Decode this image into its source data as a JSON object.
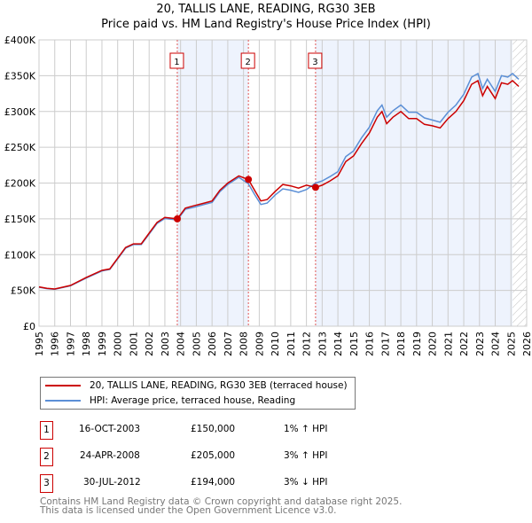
{
  "title_line1": "20, TALLIS LANE, READING, RG30 3EB",
  "title_line2": "Price paid vs. HM Land Registry's House Price Index (HPI)",
  "chart_data": {
    "type": "line",
    "ylim": [
      0,
      400000
    ],
    "xlim": [
      1995,
      2026
    ],
    "yticks": [
      0,
      50000,
      100000,
      150000,
      200000,
      250000,
      300000,
      350000,
      400000
    ],
    "ytick_labels": [
      "£0",
      "£50K",
      "£100K",
      "£150K",
      "£200K",
      "£250K",
      "£300K",
      "£350K",
      "£400K"
    ],
    "xticks": [
      1995,
      1996,
      1997,
      1998,
      1999,
      2000,
      2001,
      2002,
      2003,
      2004,
      2005,
      2006,
      2007,
      2008,
      2009,
      2010,
      2011,
      2012,
      2013,
      2014,
      2015,
      2016,
      2017,
      2018,
      2019,
      2020,
      2021,
      2022,
      2023,
      2024,
      2025,
      2026
    ],
    "grid": true,
    "shaded_ranges": [
      [
        2003.79,
        2008.31
      ],
      [
        2012.58,
        2025.1
      ]
    ],
    "hatched_from": 2025.1,
    "series": [
      {
        "name": "20, TALLIS LANE, READING, RG30 3EB (terraced house)",
        "color": "#cc0000",
        "x": [
          1995,
          1995.5,
          1996,
          1997,
          1998,
          1999,
          1999.5,
          2000,
          2000.5,
          2001,
          2001.5,
          2002,
          2002.5,
          2003,
          2003.79,
          2004.3,
          2004.8,
          2005.5,
          2006,
          2006.5,
          2007,
          2007.7,
          2008.31,
          2008.7,
          2009.1,
          2009.5,
          2010,
          2010.5,
          2011,
          2011.5,
          2012,
          2012.58,
          2013,
          2013.5,
          2014,
          2014.5,
          2015,
          2015.5,
          2016,
          2016.5,
          2016.8,
          2017.1,
          2017.5,
          2018,
          2018.5,
          2019,
          2019.5,
          2020,
          2020.5,
          2021,
          2021.5,
          2022,
          2022.5,
          2022.9,
          2023.2,
          2023.5,
          2024,
          2024.4,
          2024.8,
          2025.1,
          2025.5
        ],
        "y": [
          55000,
          53000,
          52000,
          57000,
          68000,
          78000,
          80000,
          95000,
          110000,
          115000,
          115000,
          130000,
          145000,
          152000,
          150000,
          165000,
          168000,
          172000,
          175000,
          190000,
          200000,
          210000,
          205000,
          190000,
          175000,
          177000,
          188000,
          198000,
          196000,
          193000,
          197000,
          194000,
          197000,
          203000,
          210000,
          230000,
          238000,
          255000,
          270000,
          292000,
          300000,
          283000,
          292000,
          300000,
          290000,
          290000,
          282000,
          280000,
          277000,
          290000,
          300000,
          315000,
          338000,
          343000,
          322000,
          335000,
          318000,
          340000,
          338000,
          343000,
          335000
        ]
      },
      {
        "name": "HPI: Average price, terraced house, Reading",
        "color": "#5b8fd6",
        "x": [
          1995,
          1995.5,
          1996,
          1997,
          1998,
          1999,
          1999.5,
          2000,
          2000.5,
          2001,
          2001.5,
          2002,
          2002.5,
          2003,
          2003.79,
          2004.3,
          2004.8,
          2005.5,
          2006,
          2006.5,
          2007,
          2007.7,
          2008.31,
          2008.7,
          2009.1,
          2009.5,
          2010,
          2010.5,
          2011,
          2011.5,
          2012,
          2012.58,
          2013,
          2013.5,
          2014,
          2014.5,
          2015,
          2015.5,
          2016,
          2016.5,
          2016.8,
          2017.1,
          2017.5,
          2018,
          2018.5,
          2019,
          2019.5,
          2020,
          2020.5,
          2021,
          2021.5,
          2022,
          2022.5,
          2022.9,
          2023.2,
          2023.5,
          2024,
          2024.4,
          2024.8,
          2025.1,
          2025.5
        ],
        "y": [
          54500,
          52500,
          51500,
          56500,
          67300,
          77200,
          79200,
          94000,
          109000,
          114000,
          114000,
          128700,
          143500,
          150500,
          148500,
          163500,
          166000,
          170000,
          173000,
          188000,
          198000,
          208000,
          199000,
          184000,
          170000,
          172000,
          183000,
          192000,
          190000,
          187000,
          191000,
          200000,
          203000,
          209000,
          216000,
          237000,
          245000,
          263000,
          278000,
          301000,
          309000,
          292000,
          301000,
          309000,
          299000,
          299000,
          291000,
          288000,
          285000,
          299000,
          309000,
          324000,
          348000,
          353000,
          332000,
          345000,
          328000,
          350000,
          348000,
          353000,
          345000
        ]
      }
    ],
    "sales": [
      {
        "label": "1",
        "x": 2003.79,
        "y": 150000
      },
      {
        "label": "2",
        "x": 2008.31,
        "y": 205000
      },
      {
        "label": "3",
        "x": 2012.58,
        "y": 194000
      }
    ]
  },
  "legend": {
    "property": "20, TALLIS LANE, READING, RG30 3EB (terraced house)",
    "hpi": "HPI: Average price, terraced house, Reading"
  },
  "table": [
    {
      "num": "1",
      "date": "16-OCT-2003",
      "price": "£150,000",
      "hpi": "1% ↑ HPI"
    },
    {
      "num": "2",
      "date": "24-APR-2008",
      "price": "£205,000",
      "hpi": "3% ↑ HPI"
    },
    {
      "num": "3",
      "date": "30-JUL-2012",
      "price": "£194,000",
      "hpi": "3% ↓ HPI"
    }
  ],
  "footer": {
    "line1": "Contains HM Land Registry data © Crown copyright and database right 2025.",
    "line2": "This data is licensed under the Open Government Licence v3.0."
  }
}
